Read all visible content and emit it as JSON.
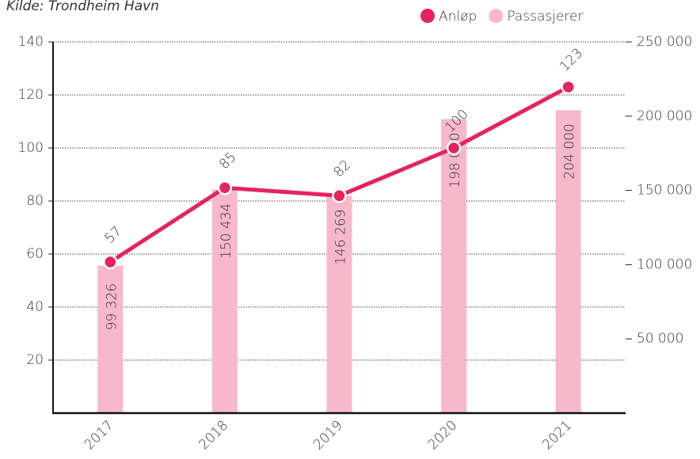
{
  "chart_data": {
    "type": "bar_line",
    "subtitle": "Kilde: Trondheim Havn",
    "categories": [
      "2017",
      "2018",
      "2019",
      "2020",
      "2021"
    ],
    "series": [
      {
        "name": "Passasjerer",
        "color": "#f7b8cc",
        "axis": "y2",
        "kind": "bar",
        "values": [
          99326,
          150434,
          146269,
          198000,
          204000
        ],
        "value_labels": [
          "99 326",
          "150 434",
          "146 269",
          "198 000",
          "204 000"
        ]
      },
      {
        "name": "Anløp",
        "color": "#e5245c",
        "axis": "y",
        "kind": "line",
        "values": [
          57,
          85,
          82,
          100,
          123
        ]
      }
    ],
    "ylim": [
      0,
      140
    ],
    "yticks": [
      20,
      40,
      60,
      80,
      100,
      120,
      140
    ],
    "y2lim": [
      0,
      250000
    ],
    "y2ticks": [
      {
        "value": 50000,
        "label": "50 000"
      },
      {
        "value": 100000,
        "label": "100 000"
      },
      {
        "value": 150000,
        "label": "150 000"
      },
      {
        "value": 200000,
        "label": "200 000"
      },
      {
        "value": 250000,
        "label": "250 000"
      }
    ],
    "grid": true,
    "legend": "top-right"
  }
}
